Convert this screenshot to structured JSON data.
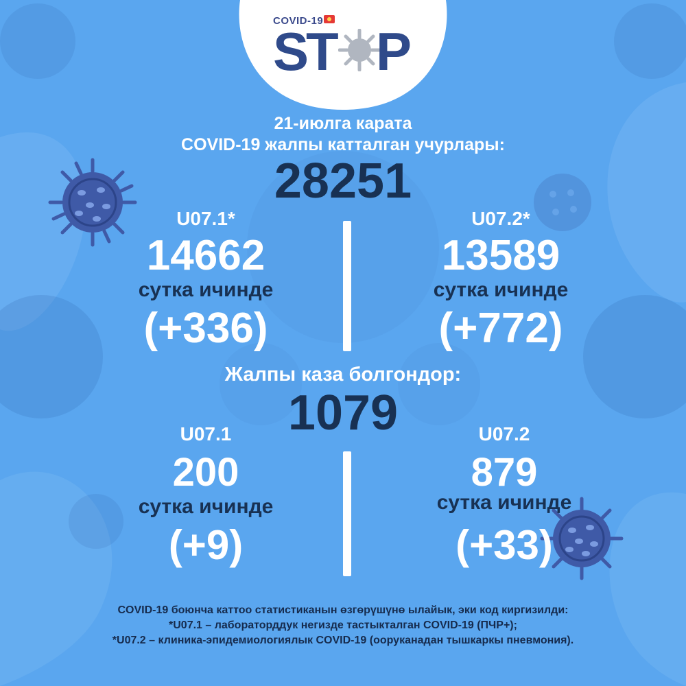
{
  "brand": {
    "covid_label": "COVID-19",
    "logo_s": "S",
    "logo_t": "T",
    "logo_p": "P"
  },
  "header": {
    "date_line": "21-июлга карата",
    "subtitle": "COVID-19 жалпы катталган учурлары:",
    "total_cases": "28251"
  },
  "cases": {
    "left": {
      "code": "U07.1*",
      "value": "14662",
      "day_label": "сутка ичинде",
      "delta": "(+336)"
    },
    "right": {
      "code": "U07.2*",
      "value": "13589",
      "day_label": "сутка ичинде",
      "delta": "(+772)"
    }
  },
  "deaths": {
    "title": "Жалпы каза болгондор:",
    "total": "1079",
    "left": {
      "code": "U07.1",
      "value": "200",
      "day_label": "сутка ичинде",
      "delta": "(+9)"
    },
    "right": {
      "code": "U07.2",
      "value": "879",
      "day_label": "сутка ичинде",
      "delta": "(+33)"
    }
  },
  "footnotes": [
    "COVID-19 боюнча каттоо статистиканын өзгөрүшүнө ылайык, эки код киргизилди:",
    "*U07.1 – лабораторддук негизде тастыкталган COVID-19 (ПЧР+);",
    "*U07.2 – клиника-эпидемиологиялык COVID-19 (ооруканадан тышкаркы пневмония)."
  ],
  "colors": {
    "background": "#5aa6ef",
    "accent_dark": "#183153",
    "text_light": "#ffffff",
    "logo_blue": "#2f4a8a"
  }
}
